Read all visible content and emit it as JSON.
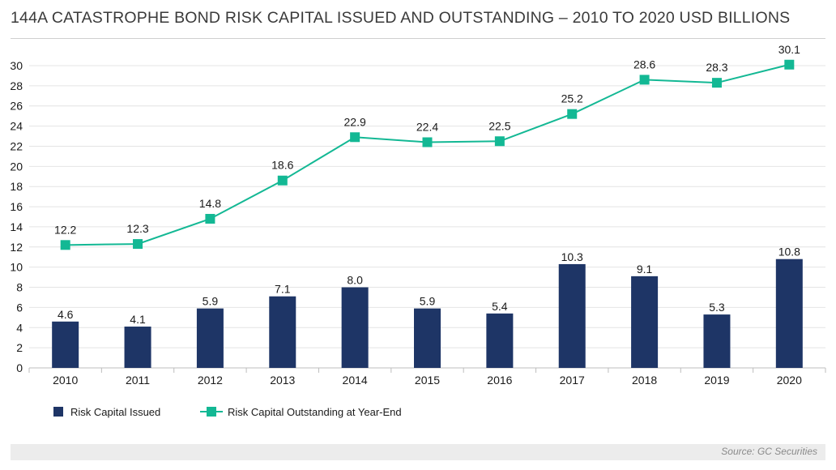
{
  "chart_data": {
    "type": "bar",
    "title": "144A CATASTROPHE BOND RISK CAPITAL ISSUED AND OUTSTANDING – 2010 TO 2020 USD BILLIONS",
    "categories": [
      "2010",
      "2011",
      "2012",
      "2013",
      "2014",
      "2015",
      "2016",
      "2017",
      "2018",
      "2019",
      "2020"
    ],
    "series": [
      {
        "name": "Risk Capital Issued",
        "type": "bar",
        "values": [
          4.6,
          4.1,
          5.9,
          7.1,
          8.0,
          5.9,
          5.4,
          10.3,
          9.1,
          5.3,
          10.8
        ],
        "labels": [
          "4.6",
          "4.1",
          "5.9",
          "7.1",
          "8.0",
          "5.9",
          "5.4",
          "10.3",
          "9.1",
          "5.3",
          "10.8"
        ],
        "color": "#1e3566"
      },
      {
        "name": "Risk Capital Outstanding at Year-End",
        "type": "line",
        "values": [
          12.2,
          12.3,
          14.8,
          18.6,
          22.9,
          22.4,
          22.5,
          25.2,
          28.6,
          28.3,
          30.1
        ],
        "labels": [
          "12.2",
          "12.3",
          "14.8",
          "18.6",
          "22.9",
          "22.4",
          "22.5",
          "25.2",
          "28.6",
          "28.3",
          "30.1"
        ],
        "color": "#13b894"
      }
    ],
    "yticks": [
      "0",
      "2",
      "4",
      "6",
      "8",
      "10",
      "12",
      "14",
      "16",
      "18",
      "20",
      "22",
      "24",
      "26",
      "28",
      "30"
    ],
    "ylim": [
      0,
      30
    ],
    "xlabel": "",
    "ylabel": "",
    "grid": true,
    "legend": "bottom-left"
  },
  "source": "Source: GC Securities"
}
